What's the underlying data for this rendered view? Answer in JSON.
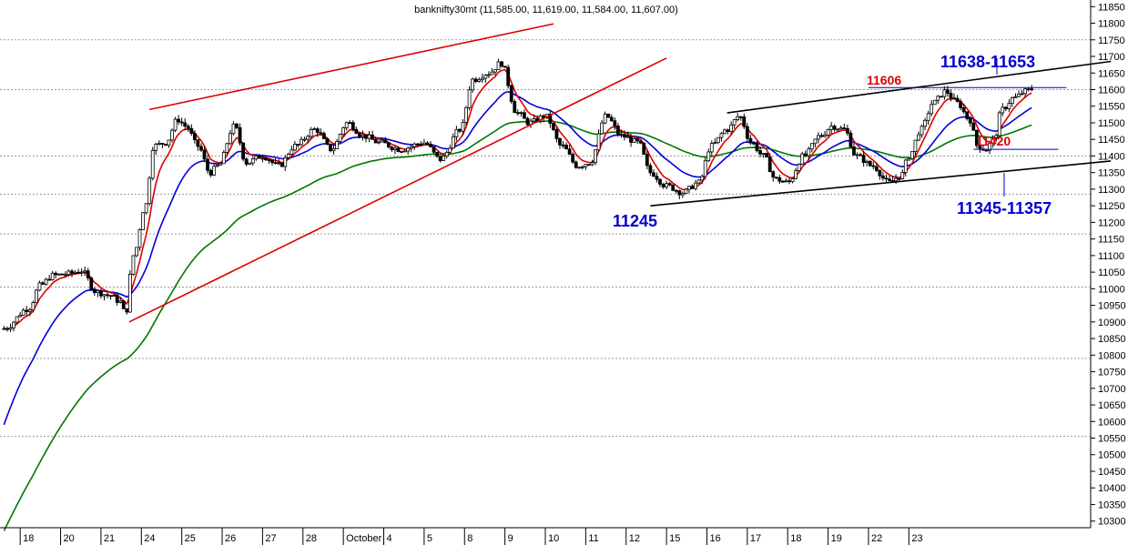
{
  "chart_data": {
    "type": "candlestick",
    "title": "banknifty30mt (11,585.00, 11,619.00, 11,584.00, 11,607.00)",
    "ylim": [
      10280,
      11870
    ],
    "y_ticks": [
      10300,
      10350,
      10400,
      10450,
      10500,
      10550,
      10600,
      10650,
      10700,
      10750,
      10800,
      10850,
      10900,
      10950,
      11000,
      11050,
      11100,
      11150,
      11200,
      11250,
      11300,
      11350,
      11400,
      11450,
      11500,
      11550,
      11600,
      11650,
      11700,
      11750,
      11800,
      11850
    ],
    "x_sessions": [
      "18",
      "20",
      "21",
      "24",
      "25",
      "26",
      "27",
      "28",
      "October",
      "4",
      "5",
      "8",
      "9",
      "10",
      "11",
      "12",
      "15",
      "16",
      "17",
      "18",
      "19",
      "22",
      "23"
    ],
    "x_range": [
      -0.5,
      26.5
    ],
    "reference_levels": [
      11750,
      11600,
      11400,
      11285,
      11165,
      11005,
      10790,
      10555
    ],
    "candle_anchors": [
      [
        -0.4,
        10880
      ],
      [
        0.2,
        10940
      ],
      [
        0.5,
        11010
      ],
      [
        0.8,
        11040
      ],
      [
        1.2,
        11045
      ],
      [
        1.5,
        11055
      ],
      [
        1.9,
        10990
      ],
      [
        2.2,
        10980
      ],
      [
        2.5,
        10960
      ],
      [
        2.6,
        10920
      ],
      [
        2.8,
        11100
      ],
      [
        3.1,
        11250
      ],
      [
        3.3,
        11430
      ],
      [
        3.6,
        11440
      ],
      [
        3.9,
        11510
      ],
      [
        4.1,
        11490
      ],
      [
        4.4,
        11430
      ],
      [
        4.7,
        11350
      ],
      [
        4.9,
        11370
      ],
      [
        5.3,
        11490
      ],
      [
        5.6,
        11380
      ],
      [
        6.0,
        11400
      ],
      [
        6.4,
        11370
      ],
      [
        6.8,
        11430
      ],
      [
        7.3,
        11480
      ],
      [
        7.7,
        11420
      ],
      [
        8.1,
        11500
      ],
      [
        8.5,
        11460
      ],
      [
        8.9,
        11440
      ],
      [
        9.4,
        11420
      ],
      [
        10.0,
        11440
      ],
      [
        10.4,
        11390
      ],
      [
        10.9,
        11480
      ],
      [
        11.2,
        11630
      ],
      [
        11.6,
        11650
      ],
      [
        11.9,
        11680
      ],
      [
        12.3,
        11530
      ],
      [
        12.6,
        11500
      ],
      [
        13.0,
        11520
      ],
      [
        13.4,
        11430
      ],
      [
        13.8,
        11370
      ],
      [
        14.1,
        11380
      ],
      [
        14.5,
        11520
      ],
      [
        14.9,
        11460
      ],
      [
        15.3,
        11440
      ],
      [
        15.6,
        11350
      ],
      [
        16.0,
        11310
      ],
      [
        16.4,
        11290
      ],
      [
        16.8,
        11320
      ],
      [
        17.1,
        11430
      ],
      [
        17.5,
        11480
      ],
      [
        17.8,
        11520
      ],
      [
        18.1,
        11440
      ],
      [
        18.4,
        11400
      ],
      [
        18.7,
        11330
      ],
      [
        19.0,
        11320
      ],
      [
        19.4,
        11400
      ],
      [
        19.8,
        11460
      ],
      [
        20.1,
        11490
      ],
      [
        20.4,
        11480
      ],
      [
        20.7,
        11400
      ],
      [
        21.1,
        11370
      ],
      [
        21.5,
        11320
      ],
      [
        21.8,
        11340
      ],
      [
        22.0,
        11400
      ],
      [
        22.3,
        11480
      ],
      [
        22.6,
        11560
      ],
      [
        22.9,
        11595
      ],
      [
        23.2,
        11560
      ],
      [
        23.5,
        11510
      ],
      [
        23.7,
        11430
      ],
      [
        23.9,
        11420
      ],
      [
        24.1,
        11450
      ],
      [
        24.3,
        11540
      ],
      [
        24.6,
        11575
      ],
      [
        24.9,
        11595
      ],
      [
        25.1,
        11607
      ]
    ],
    "annotations": [
      {
        "text": "11638-11653",
        "value": 11645,
        "color": "#0000cc"
      },
      {
        "text": "11606",
        "value": 11606,
        "color": "#dd0000"
      },
      {
        "text": "11420",
        "value": 11420,
        "color": "#dd0000"
      },
      {
        "text": "11245",
        "value": 11245,
        "color": "#0000cc"
      },
      {
        "text": "11345-11357",
        "value": 11351,
        "color": "#0000cc"
      }
    ],
    "trendlines": [
      {
        "name": "upper-red",
        "color": "#dd0000",
        "points": [
          [
            3.2,
            11540
          ],
          [
            13.2,
            11798
          ]
        ]
      },
      {
        "name": "rising-red",
        "color": "#dd0000",
        "points": [
          [
            2.7,
            10900
          ],
          [
            16.0,
            11695
          ]
        ]
      },
      {
        "name": "channel-top",
        "color": "#000000",
        "points": [
          [
            17.5,
            11530
          ],
          [
            27.0,
            11685
          ]
        ]
      },
      {
        "name": "channel-bottom",
        "color": "#000000",
        "points": [
          [
            15.6,
            11250
          ],
          [
            27.0,
            11385
          ]
        ]
      }
    ],
    "level_lines": [
      {
        "name": "level-11606",
        "color": "#0000cc",
        "value": 11606,
        "from": 21.0,
        "to": 25.9
      },
      {
        "name": "level-11420",
        "color": "#0000cc",
        "value": 11420,
        "from": 23.6,
        "to": 25.7
      }
    ],
    "ma_colors": {
      "fast": "#dd0000",
      "mid": "#0000dd",
      "slow": "#007700"
    }
  }
}
